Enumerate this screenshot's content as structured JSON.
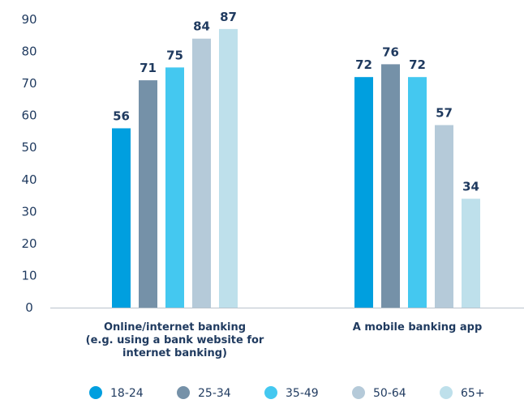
{
  "chart_data": {
    "type": "bar",
    "categories": [
      [
        "Online/internet banking",
        "(e.g. using a bank website for",
        "internet banking)"
      ],
      [
        "A mobile banking app"
      ]
    ],
    "series": [
      {
        "name": "18-24",
        "color": "#009fdf",
        "values": [
          56,
          72
        ]
      },
      {
        "name": "25-34",
        "color": "#7591a8",
        "values": [
          71,
          76
        ]
      },
      {
        "name": "35-49",
        "color": "#44c8f0",
        "values": [
          75,
          72
        ]
      },
      {
        "name": "50-64",
        "color": "#b5cad9",
        "values": [
          84,
          57
        ]
      },
      {
        "name": "65+",
        "color": "#bee0eb",
        "values": [
          87,
          34
        ]
      }
    ],
    "y_ticks": [
      "0",
      "10",
      "20",
      "30",
      "40",
      "50",
      "60",
      "70",
      "80",
      "90"
    ],
    "ylim": [
      0,
      90
    ],
    "grid": false,
    "legend_position": "bottom",
    "title": "",
    "xlabel": "",
    "ylabel": ""
  }
}
